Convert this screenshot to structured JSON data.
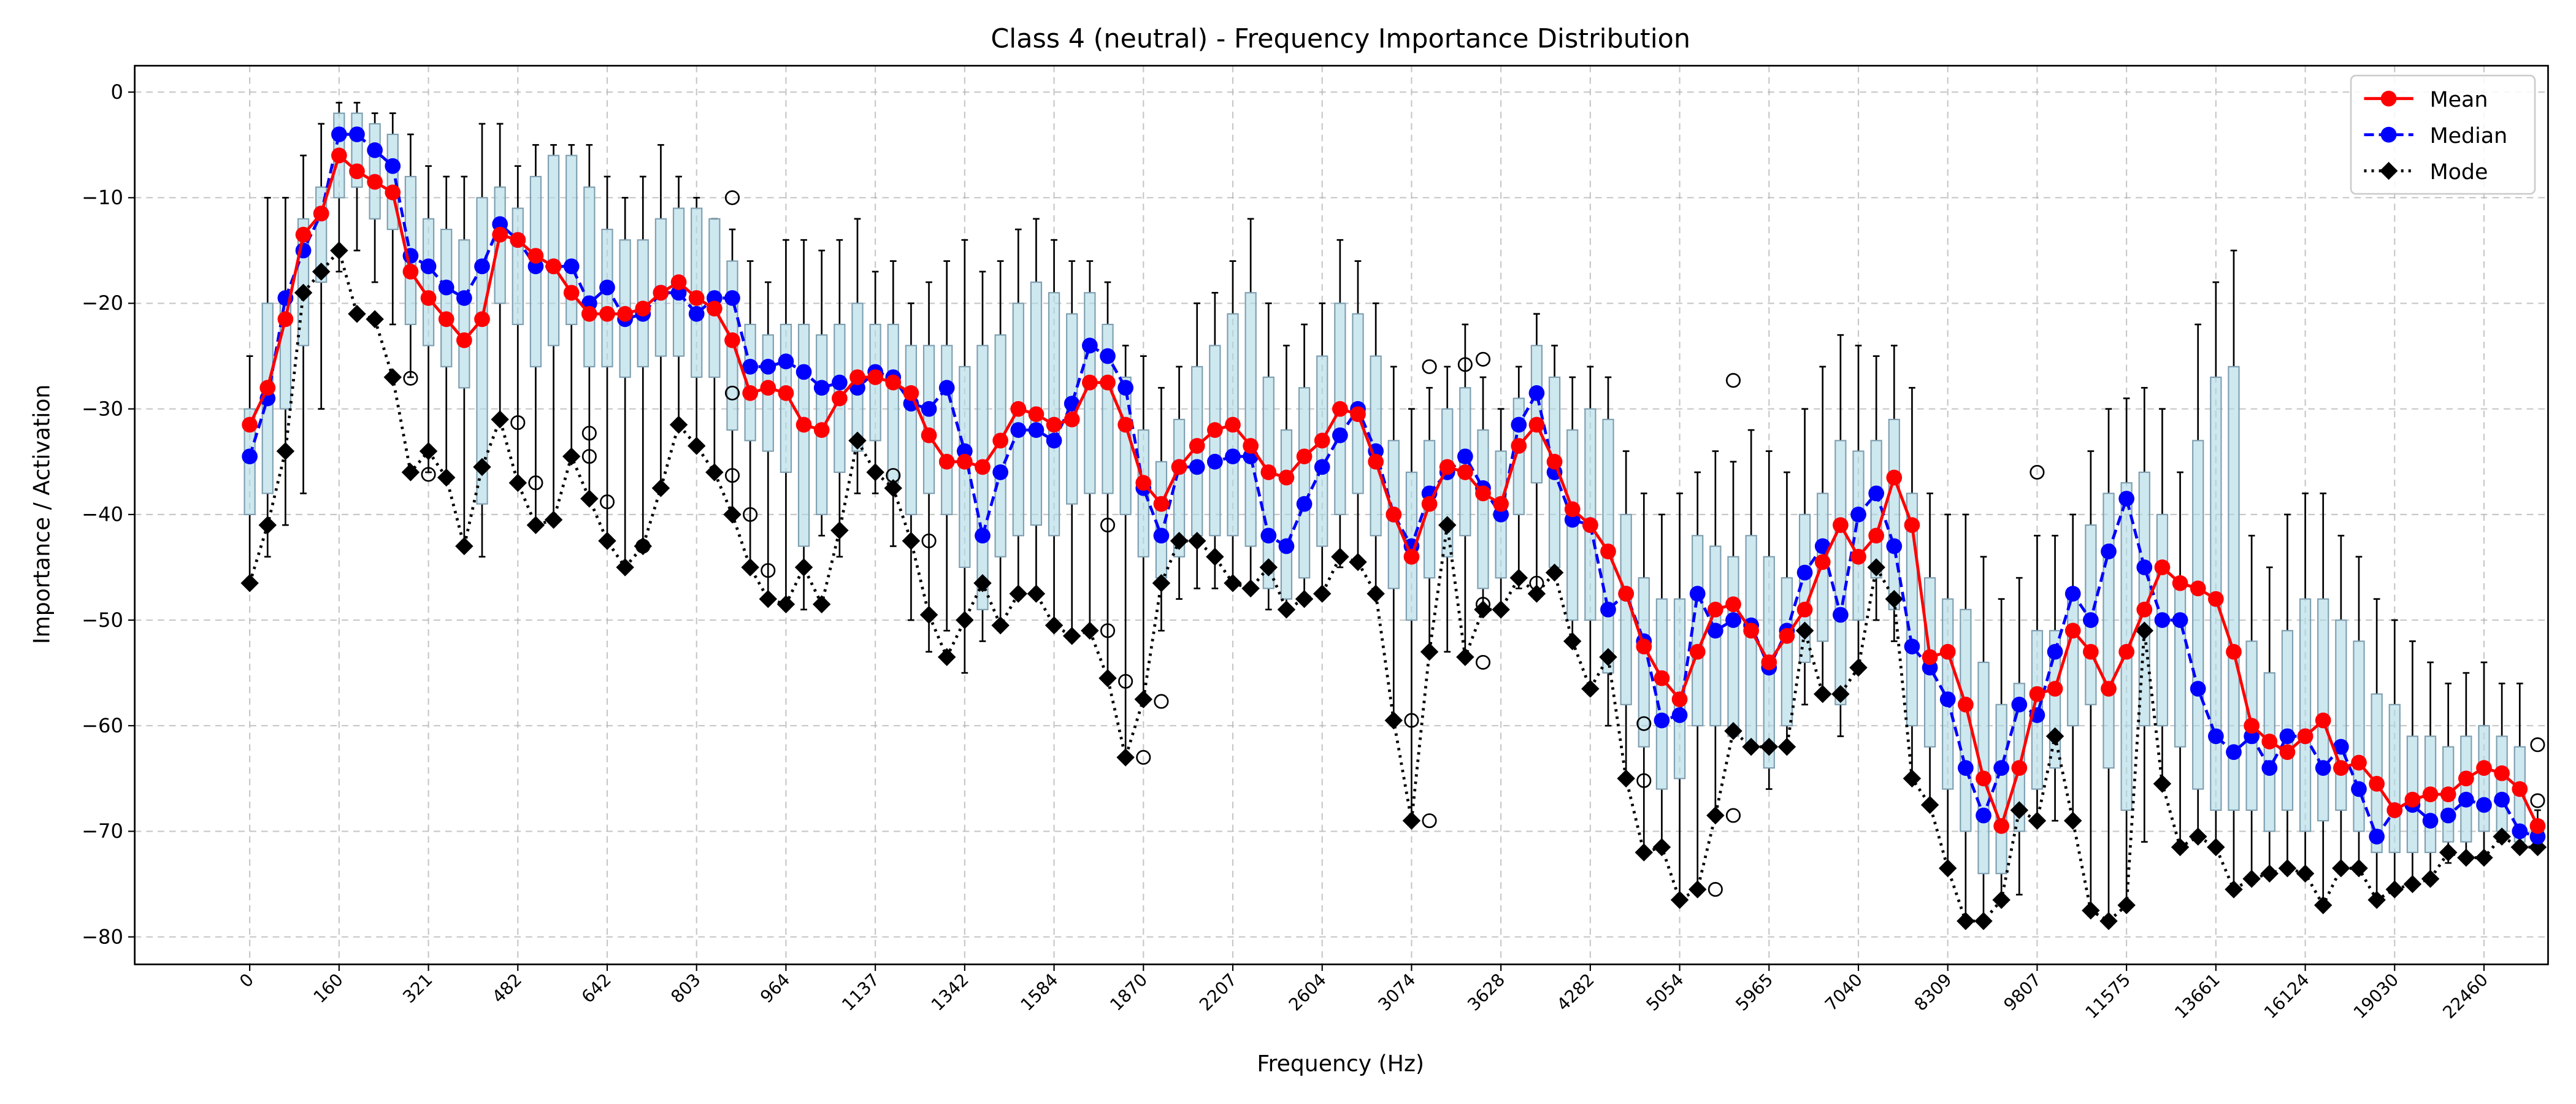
{
  "chart_data": {
    "type": "box",
    "title": "Class 4 (neutral) - Frequency Importance Distribution",
    "x_label": "Frequency (Hz)",
    "y_label": "Importance / Activation",
    "categories": [
      "0",
      null,
      null,
      null,
      null,
      "160",
      null,
      null,
      null,
      null,
      "321",
      null,
      null,
      null,
      null,
      "482",
      null,
      null,
      null,
      null,
      "642",
      null,
      null,
      null,
      null,
      "803",
      null,
      null,
      null,
      null,
      "964",
      null,
      null,
      null,
      null,
      "1137",
      null,
      null,
      null,
      null,
      "1342",
      null,
      null,
      null,
      null,
      "1584",
      null,
      null,
      null,
      null,
      "1870",
      null,
      null,
      null,
      null,
      "2207",
      null,
      null,
      null,
      null,
      "2604",
      null,
      null,
      null,
      null,
      "3074",
      null,
      null,
      null,
      null,
      "3628",
      null,
      null,
      null,
      null,
      "4282",
      null,
      null,
      null,
      null,
      "5054",
      null,
      null,
      null,
      null,
      "5965",
      null,
      null,
      null,
      null,
      "7040",
      null,
      null,
      null,
      null,
      "8309",
      null,
      null,
      null,
      null,
      "9807",
      null,
      null,
      null,
      null,
      "11575",
      null,
      null,
      null,
      null,
      "13661",
      null,
      null,
      null,
      null,
      "16124",
      null,
      null,
      null,
      null,
      "19030",
      null,
      null,
      null,
      null,
      "22460",
      null,
      null,
      null
    ],
    "ylim": [
      -82.6,
      2.5
    ],
    "yticks": [
      {
        "value": -80,
        "label": "−80"
      },
      {
        "value": -70,
        "label": "−70"
      },
      {
        "value": -60,
        "label": "−60"
      },
      {
        "value": -50,
        "label": "−50"
      },
      {
        "value": -40,
        "label": "−40"
      },
      {
        "value": -30,
        "label": "−30"
      },
      {
        "value": -20,
        "label": "−20"
      },
      {
        "value": -10,
        "label": "−10"
      },
      0
    ],
    "grid": true,
    "legend": "upper right",
    "box": {
      "color": "#add8e6",
      "edge_color": "#7f9fb0",
      "median_color": "#ff8c00",
      "whisker_high": [
        -25,
        -10,
        -10,
        -6,
        -3,
        -1,
        -1,
        -2,
        -2,
        -4,
        -7,
        -8,
        -8,
        -3,
        -3,
        -7,
        -5,
        -5,
        -5,
        -5,
        -8,
        -10,
        -8,
        -5,
        -8,
        -10,
        -12,
        -13,
        -16,
        -18,
        -14,
        -14,
        -15,
        -14,
        -12,
        -17,
        -16,
        -20,
        -18,
        -16,
        -14,
        -17,
        -16,
        -13,
        -12,
        -14,
        -16,
        -16,
        -18,
        -24,
        -25,
        -28,
        -26,
        -20,
        -19,
        -16,
        -12,
        -20,
        -24,
        -22,
        -20,
        -14,
        -16,
        -20,
        -26,
        -30,
        -28,
        -26,
        -22,
        -27,
        -30,
        -26,
        -21,
        -24,
        -27,
        -26,
        -27,
        -34,
        -38,
        -40,
        -38,
        -36,
        -34,
        -35,
        -32,
        -34,
        -36,
        -30,
        -26,
        -23,
        -24,
        -25,
        -24,
        -28,
        -38,
        -40,
        -40,
        -44,
        -48,
        -46,
        -42,
        -42,
        -40,
        -34,
        -30,
        -29,
        -28,
        -30,
        -36,
        -22,
        -18,
        -15,
        -42,
        -45,
        -40,
        -38,
        -38,
        -42,
        -44,
        -48,
        -50,
        -52,
        -54,
        -56,
        -55,
        -54,
        -56,
        -56,
        -68
      ],
      "q3": [
        -30,
        -20,
        -19,
        -12,
        -9,
        -2,
        -2,
        -3,
        -4,
        -8,
        -12,
        -13,
        -14,
        -10,
        -9,
        -11,
        -8,
        -6,
        -6,
        -9,
        -13,
        -14,
        -14,
        -12,
        -11,
        -11,
        -12,
        -16,
        -22,
        -23,
        -22,
        -22,
        -23,
        -22,
        -20,
        -22,
        -22,
        -24,
        -24,
        -24,
        -26,
        -24,
        -23,
        -20,
        -18,
        -19,
        -21,
        -19,
        -22,
        -27,
        -32,
        -35,
        -31,
        -26,
        -24,
        -21,
        -19,
        -27,
        -32,
        -28,
        -25,
        -20,
        -21,
        -25,
        -33,
        -36,
        -33,
        -30,
        -28,
        -32,
        -34,
        -29,
        -24,
        -27,
        -32,
        -30,
        -31,
        -40,
        -46,
        -48,
        -48,
        -42,
        -43,
        -44,
        -42,
        -44,
        -46,
        -40,
        -38,
        -33,
        -34,
        -33,
        -31,
        -38,
        -46,
        -48,
        -49,
        -54,
        -58,
        -56,
        -51,
        -51,
        -47,
        -41,
        -38,
        -37,
        -36,
        -40,
        -46,
        -33,
        -27,
        -26,
        -52,
        -55,
        -51,
        -48,
        -48,
        -50,
        -52,
        -57,
        -58,
        -61,
        -61,
        -62,
        -61,
        -60,
        -61,
        -62,
        -69
      ],
      "q1": [
        -40,
        -38,
        -30,
        -24,
        -18,
        -10,
        -9,
        -12,
        -13,
        -22,
        -24,
        -26,
        -28,
        -39,
        -20,
        -22,
        -26,
        -24,
        -22,
        -26,
        -26,
        -27,
        -26,
        -25,
        -25,
        -27,
        -27,
        -32,
        -33,
        -34,
        -36,
        -43,
        -40,
        -36,
        -34,
        -33,
        -37,
        -40,
        -38,
        -40,
        -45,
        -49,
        -44,
        -42,
        -41,
        -42,
        -39,
        -38,
        -38,
        -40,
        -44,
        -46,
        -44,
        -42,
        -42,
        -42,
        -43,
        -47,
        -48,
        -46,
        -43,
        -40,
        -38,
        -42,
        -47,
        -50,
        -46,
        -44,
        -42,
        -47,
        -46,
        -40,
        -37,
        -45,
        -50,
        -50,
        -55,
        -58,
        -62,
        -66,
        -65,
        -60,
        -60,
        -61,
        -62,
        -64,
        -60,
        -54,
        -52,
        -58,
        -50,
        -46,
        -49,
        -60,
        -62,
        -66,
        -70,
        -74,
        -74,
        -70,
        -66,
        -64,
        -60,
        -58,
        -64,
        -68,
        -60,
        -60,
        -62,
        -66,
        -68,
        -68,
        -68,
        -70,
        -68,
        -70,
        -69,
        -68,
        -70,
        -72,
        -72,
        -72,
        -72,
        -71,
        -71,
        -70,
        -70,
        -71,
        -71
      ],
      "whisker_low": [
        -46,
        -44,
        -41,
        -38,
        -30,
        -17,
        -15,
        -18,
        -22,
        -27,
        -36,
        -37,
        -43,
        -44,
        -31,
        -37,
        -41,
        -41,
        -35,
        -39,
        -43,
        -45,
        -43,
        -38,
        -32,
        -34,
        -36,
        -40,
        -45,
        -48,
        -49,
        -49,
        -42,
        -44,
        -38,
        -38,
        -43,
        -50,
        -53,
        -51,
        -55,
        -52,
        -51,
        -48,
        -48,
        -51,
        -52,
        -51,
        -56,
        -63,
        -58,
        -51,
        -48,
        -47,
        -47,
        -47,
        -47,
        -49,
        -49,
        -48,
        -48,
        -45,
        -45,
        -48,
        -60,
        -69,
        -53,
        -53,
        -54,
        -49,
        -49,
        -47,
        -48,
        -46,
        -52,
        -57,
        -60,
        -65,
        -72,
        -72,
        -76,
        -76,
        -69,
        -61,
        -62,
        -66,
        -62,
        -58,
        -57,
        -61,
        -55,
        -50,
        -52,
        -65,
        -68,
        -74,
        -79,
        -79,
        -77,
        -76,
        -69,
        -69,
        -69,
        -78,
        -79,
        -77,
        -71,
        -66,
        -72,
        -71,
        -72,
        -76,
        -75,
        -74,
        -74,
        -74,
        -77,
        -74,
        -74,
        -77,
        -76,
        -75,
        -75,
        -73,
        -73,
        -73,
        -71,
        -72,
        -72
      ]
    },
    "outliers": {
      "x": [
        9,
        10,
        15,
        16,
        19,
        19,
        20,
        22,
        27,
        27,
        27,
        28,
        29,
        36,
        38,
        48,
        48,
        49,
        50,
        51,
        65,
        66,
        66,
        68,
        69,
        69,
        69,
        72,
        78,
        78,
        82,
        83,
        83,
        100,
        128,
        128
      ],
      "values": [
        -27.1,
        -36.2,
        -31.3,
        -37,
        -32.3,
        -34.5,
        -38.8,
        -43,
        -10,
        -28.5,
        -36.3,
        -40,
        -45.3,
        -36.3,
        -42.5,
        -41,
        -51,
        -55.8,
        -63,
        -57.7,
        -59.5,
        -69,
        -26,
        -25.8,
        -25.3,
        -48.5,
        -54,
        -46.5,
        -59.8,
        -65.2,
        -75.5,
        -27.3,
        -68.5,
        -36,
        -61.8,
        -67.1
      ]
    },
    "series": [
      {
        "name": "Mean",
        "color": "#ff0000",
        "marker": "o",
        "linestyle": "solid",
        "values": [
          -31.5,
          -28,
          -21.5,
          -13.5,
          -11.5,
          -6,
          -7.5,
          -8.5,
          -9.5,
          -17,
          -19.5,
          -21.5,
          -23.5,
          -21.5,
          -13.5,
          -14,
          -15.5,
          -16.5,
          -19,
          -21,
          -21,
          -21,
          -20.5,
          -19,
          -18,
          -19.5,
          -20.5,
          -23.5,
          -28.5,
          -28,
          -28.5,
          -31.5,
          -32,
          -29,
          -27,
          -27,
          -27.5,
          -28.5,
          -32.5,
          -35,
          -35,
          -35.5,
          -33,
          -30,
          -30.5,
          -31.5,
          -31,
          -27.5,
          -27.5,
          -31.5,
          -37,
          -39,
          -35.5,
          -33.5,
          -32,
          -31.5,
          -33.5,
          -36,
          -36.5,
          -34.5,
          -33,
          -30,
          -30.5,
          -35,
          -40,
          -44,
          -39,
          -35.5,
          -36,
          -38,
          -39,
          -33.5,
          -31.5,
          -35,
          -39.5,
          -41,
          -43.5,
          -47.5,
          -52.5,
          -55.5,
          -57.5,
          -53,
          -49,
          -48.5,
          -51,
          -54,
          -51.5,
          -49,
          -44.5,
          -41,
          -44,
          -42,
          -36.5,
          -41,
          -53.5,
          -53,
          -58,
          -65,
          -69.5,
          -64,
          -57,
          -56.5,
          -51,
          -53,
          -56.5,
          -53,
          -49,
          -45,
          -46.5,
          -47,
          -48,
          -53,
          -60,
          -61.5,
          -62.5,
          -61,
          -59.5,
          -64,
          -63.5,
          -65.5,
          -68,
          -67,
          -66.5,
          -66.5,
          -65,
          -64,
          -64.5,
          -66,
          -69.5
        ]
      },
      {
        "name": "Median",
        "color": "#0000ff",
        "marker": "o",
        "linestyle": "dashed",
        "values": [
          -34.5,
          -29,
          -19.5,
          -15,
          -11.5,
          -4,
          -4,
          -5.5,
          -7,
          -15.5,
          -16.5,
          -18.5,
          -19.5,
          -16.5,
          -12.5,
          -14,
          -16.5,
          -16.5,
          -16.5,
          -20,
          -18.5,
          -21.5,
          -21,
          -19,
          -19,
          -21,
          -19.5,
          -19.5,
          -26,
          -26,
          -25.5,
          -26.5,
          -28,
          -27.5,
          -28,
          -26.5,
          -27,
          -29.5,
          -30,
          -28,
          -34,
          -42,
          -36,
          -32,
          -32,
          -33,
          -29.5,
          -24,
          -25,
          -28,
          -37.5,
          -42,
          -35.5,
          -35.5,
          -35,
          -34.5,
          -34.5,
          -42,
          -43,
          -39,
          -35.5,
          -32.5,
          -30,
          -34,
          -40,
          -43,
          -38,
          -36,
          -34.5,
          -37.5,
          -40,
          -31.5,
          -28.5,
          -36,
          -40.5,
          -41,
          -49,
          -47.5,
          -52,
          -59.5,
          -59,
          -47.5,
          -51,
          -50,
          -50.5,
          -54.5,
          -51,
          -45.5,
          -43,
          -49.5,
          -40,
          -38,
          -43,
          -52.5,
          -54.5,
          -57.5,
          -64,
          -68.5,
          -64,
          -58,
          -59,
          -53,
          -47.5,
          -50,
          -43.5,
          -38.5,
          -45,
          -50,
          -50,
          -56.5,
          -61,
          -62.5,
          -61,
          -64,
          -61,
          -61,
          -64,
          -62,
          -66,
          -70.5,
          -68,
          -67.5,
          -69,
          -68.5,
          -67,
          -67.5,
          -67,
          -70,
          -70.5
        ]
      },
      {
        "name": "Mode",
        "color": "#000000",
        "marker": "D",
        "linestyle": "dotted",
        "values": [
          -46.5,
          -41,
          -34,
          -19,
          -17,
          -15,
          -21,
          -21.5,
          -27,
          -36,
          -34,
          -36.5,
          -43,
          -35.5,
          -31,
          -37,
          -41,
          -40.5,
          -34.5,
          -38.5,
          -42.5,
          -45,
          -43,
          -37.5,
          -31.5,
          -33.5,
          -36,
          -40,
          -45,
          -48,
          -48.5,
          -45,
          -48.5,
          -41.5,
          -33,
          -36,
          -37.5,
          -42.5,
          -49.5,
          -53.5,
          -50,
          -46.5,
          -50.5,
          -47.5,
          -47.5,
          -50.5,
          -51.5,
          -51,
          -55.5,
          -63,
          -57.5,
          -46.5,
          -42.5,
          -42.5,
          -44,
          -46.5,
          -47,
          -45,
          -49,
          -48,
          -47.5,
          -44,
          -44.5,
          -47.5,
          -59.5,
          -69,
          -53,
          -41,
          -53.5,
          -49,
          -49,
          -46,
          -47.5,
          -45.5,
          -52,
          -56.5,
          -53.5,
          -65,
          -72,
          -71.5,
          -76.5,
          -75.5,
          -68.5,
          -60.5,
          -62,
          -62,
          -62,
          -51,
          -57,
          -57,
          -54.5,
          -45,
          -48,
          -65,
          -67.5,
          -73.5,
          -78.5,
          -78.5,
          -76.5,
          -68,
          -69,
          -61,
          -69,
          -77.5,
          -78.5,
          -77,
          -51,
          -65.5,
          -71.5,
          -70.5,
          -71.5,
          -75.5,
          -74.5,
          -74,
          -73.5,
          -74,
          -77,
          -73.5,
          -73.5,
          -76.5,
          -75.5,
          -75,
          -74.5,
          -72,
          -72.5,
          -72.5,
          -70.5,
          -71.5,
          -71.5
        ]
      }
    ]
  }
}
